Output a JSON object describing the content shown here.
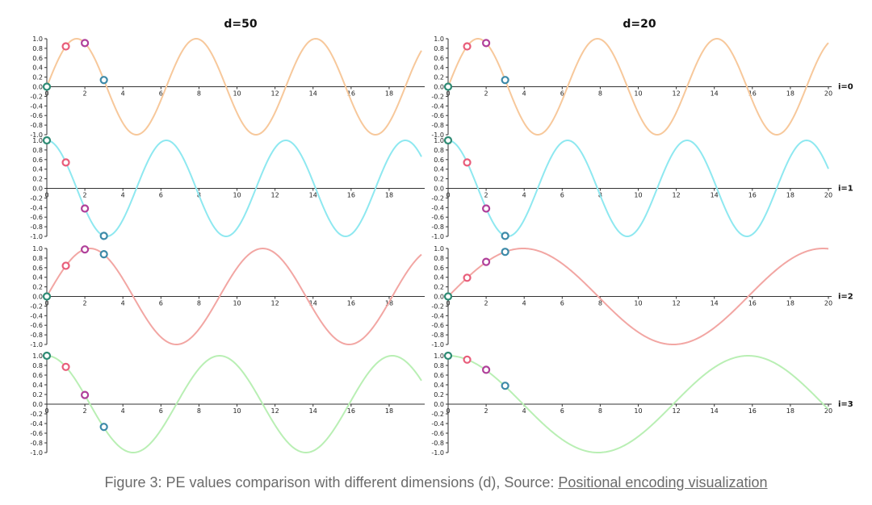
{
  "chart_data": {
    "type": "line",
    "title": "PE values comparison with different dimensions (d)",
    "columns": [
      {
        "title": "d=50",
        "d": 50,
        "xlim": [
          0,
          19.7
        ]
      },
      {
        "title": "d=20",
        "d": 20,
        "xlim": [
          0,
          20
        ]
      }
    ],
    "rows": [
      {
        "label": "i=0",
        "i": 0,
        "fn": "sin",
        "color": "#f7c89b"
      },
      {
        "label": "i=1",
        "i": 1,
        "fn": "cos",
        "color": "#8ee8f0"
      },
      {
        "label": "i=2",
        "i": 2,
        "fn": "sin",
        "color": "#f2a6a3"
      },
      {
        "label": "i=3",
        "i": 3,
        "fn": "cos",
        "color": "#b9efb4"
      }
    ],
    "ylim": [
      -1.0,
      1.0
    ],
    "yticks": [
      "1.0",
      "0.8",
      "0.6",
      "0.4",
      "0.2",
      "0.0",
      "-0.2",
      "-0.4",
      "-0.6",
      "-0.8",
      "-1.0"
    ],
    "xticks_d50": [
      "0",
      "2",
      "4",
      "6",
      "8",
      "10",
      "12",
      "14",
      "16",
      "18"
    ],
    "xticks_d20": [
      "0",
      "2",
      "4",
      "6",
      "8",
      "10",
      "12",
      "14",
      "16",
      "18",
      "20"
    ],
    "marker_positions": [
      0,
      1,
      2,
      3
    ],
    "marker_colors": [
      "#2e8b74",
      "#e85d7a",
      "#b0409a",
      "#3d8aa8"
    ],
    "samples": {
      "d50": {
        "i=0": [
          0.0,
          0.84,
          0.91,
          0.14
        ],
        "i=1": [
          1.0,
          0.54,
          -0.42,
          -0.99
        ],
        "i=2": [
          0.0,
          0.64,
          0.98,
          0.88
        ],
        "i=3": [
          1.0,
          0.77,
          0.19,
          -0.47
        ]
      },
      "d20": {
        "i=0": [
          0.0,
          0.84,
          0.91,
          0.14
        ],
        "i=1": [
          1.0,
          0.54,
          -0.42,
          -0.99
        ],
        "i=2": [
          0.0,
          0.39,
          0.72,
          0.93
        ],
        "i=3": [
          1.0,
          0.92,
          0.71,
          0.38
        ]
      }
    }
  },
  "caption": {
    "text": "Figure 3: PE values comparison with different dimensions (d), Source: ",
    "link": "Positional encoding visualization"
  }
}
